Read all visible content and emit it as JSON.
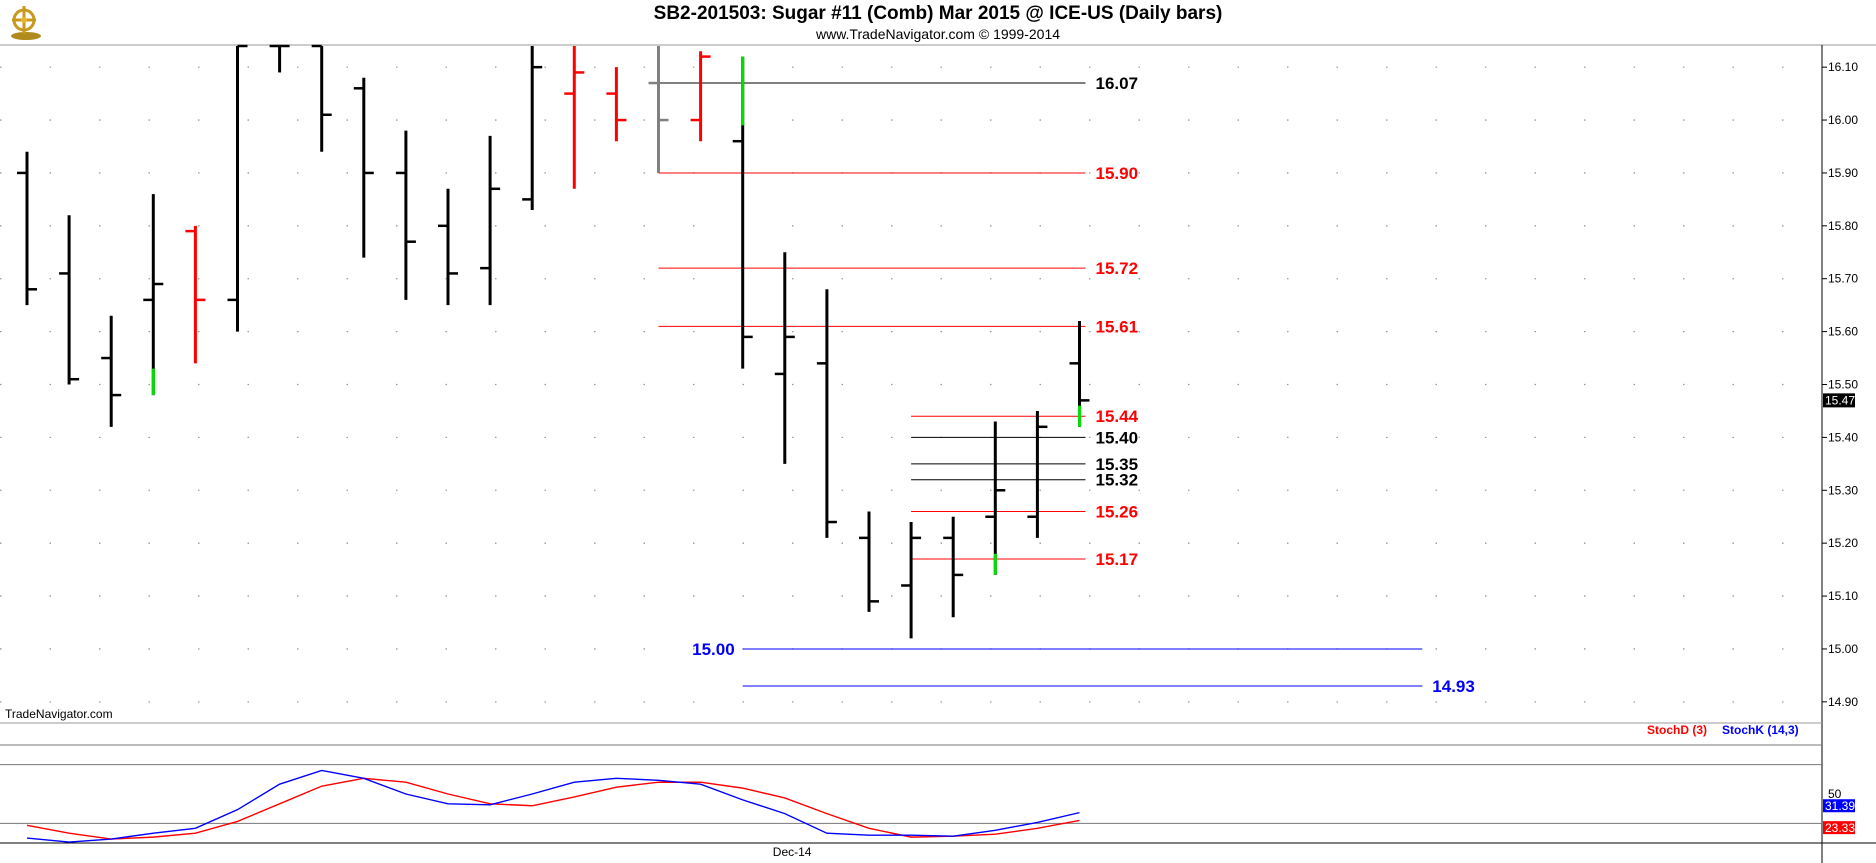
{
  "header": {
    "title": "SB2-201503:  Sugar #11 (Comb) Mar 2015 @ ICE-US  (Daily bars)",
    "subtitle": "www.TradeNavigator.com © 1999-2014"
  },
  "watermark": "TradeNavigator.com",
  "colors": {
    "up": "#ff0000",
    "down": "#000000",
    "flat": "#808080",
    "green": "#00e000",
    "level_red": "#ff0000",
    "level_black": "#000000",
    "level_blue": "#0000ff",
    "stochD": "#ff0000",
    "stochK": "#0000ff"
  },
  "indicator_legend": {
    "stochD": "StochD (3)",
    "stochK": "StochK (14,3)"
  },
  "chart_data": [
    {
      "type": "ohlc",
      "title": "SB2-201503:  Sugar #11 (Comb) Mar 2015 @ ICE-US  (Daily bars)",
      "ylim": [
        14.86,
        16.14
      ],
      "y_ticks": [
        "16.10",
        "16.00",
        "15.90",
        "15.80",
        "15.70",
        "15.60",
        "15.50",
        "15.40",
        "15.30",
        "15.20",
        "15.10",
        "15.00",
        "14.90"
      ],
      "x_tick_labels": [
        {
          "index": 18,
          "label": "Dec-14"
        }
      ],
      "last_price": "15.47",
      "bars": [
        {
          "o": 15.9,
          "h": 15.94,
          "l": 15.65,
          "c": 15.68,
          "color": "down"
        },
        {
          "o": 15.71,
          "h": 15.82,
          "l": 15.5,
          "c": 15.51,
          "color": "down"
        },
        {
          "o": 15.55,
          "h": 15.63,
          "l": 15.42,
          "c": 15.48,
          "color": "down"
        },
        {
          "o": 15.66,
          "h": 15.86,
          "l": 15.48,
          "c": 15.69,
          "color": "down",
          "green_tail": [
            15.48,
            15.53
          ]
        },
        {
          "o": 15.79,
          "h": 15.8,
          "l": 15.54,
          "c": 15.66,
          "color": "up"
        },
        {
          "o": 15.66,
          "h": 16.14,
          "l": 15.6,
          "c": 16.14,
          "color": "down"
        },
        {
          "o": 16.14,
          "h": 16.14,
          "l": 16.09,
          "c": 16.14,
          "color": "down"
        },
        {
          "o": 16.14,
          "h": 16.14,
          "l": 15.94,
          "c": 16.01,
          "color": "down"
        },
        {
          "o": 16.06,
          "h": 16.08,
          "l": 15.74,
          "c": 15.9,
          "color": "down"
        },
        {
          "o": 15.9,
          "h": 15.98,
          "l": 15.66,
          "c": 15.77,
          "color": "down"
        },
        {
          "o": 15.8,
          "h": 15.87,
          "l": 15.65,
          "c": 15.71,
          "color": "down"
        },
        {
          "o": 15.72,
          "h": 15.97,
          "l": 15.65,
          "c": 15.87,
          "color": "down"
        },
        {
          "o": 15.85,
          "h": 16.14,
          "l": 15.83,
          "c": 16.1,
          "color": "down"
        },
        {
          "o": 16.05,
          "h": 16.14,
          "l": 15.87,
          "c": 16.09,
          "color": "up"
        },
        {
          "o": 16.05,
          "h": 16.1,
          "l": 15.96,
          "c": 16.0,
          "color": "up"
        },
        {
          "o": 16.07,
          "h": 16.14,
          "l": 15.9,
          "c": 16.0,
          "color": "flat"
        },
        {
          "o": 16.0,
          "h": 16.13,
          "l": 15.96,
          "c": 16.12,
          "color": "up"
        },
        {
          "o": 15.96,
          "h": 16.12,
          "l": 15.53,
          "c": 15.59,
          "color": "down",
          "green_tail": [
            15.99,
            16.12
          ]
        },
        {
          "o": 15.52,
          "h": 15.75,
          "l": 15.35,
          "c": 15.59,
          "color": "down"
        },
        {
          "o": 15.54,
          "h": 15.68,
          "l": 15.21,
          "c": 15.24,
          "color": "down"
        },
        {
          "o": 15.21,
          "h": 15.26,
          "l": 15.07,
          "c": 15.09,
          "color": "down"
        },
        {
          "o": 15.12,
          "h": 15.24,
          "l": 15.02,
          "c": 15.21,
          "color": "down"
        },
        {
          "o": 15.21,
          "h": 15.25,
          "l": 15.06,
          "c": 15.14,
          "color": "down"
        },
        {
          "o": 15.25,
          "h": 15.43,
          "l": 15.14,
          "c": 15.3,
          "color": "down",
          "green_tail": [
            15.14,
            15.18
          ]
        },
        {
          "o": 15.25,
          "h": 15.45,
          "l": 15.21,
          "c": 15.42,
          "color": "down"
        },
        {
          "o": 15.54,
          "h": 15.62,
          "l": 15.42,
          "c": 15.47,
          "color": "down",
          "green_tail": [
            15.42,
            15.46
          ]
        }
      ],
      "levels": [
        {
          "label": "16.07",
          "value": 16.07,
          "color": "level_black",
          "from_index": 15,
          "to_index": 25
        },
        {
          "label": "15.90",
          "value": 15.9,
          "color": "level_red",
          "from_index": 15,
          "to_index": 25
        },
        {
          "label": "15.72",
          "value": 15.72,
          "color": "level_red",
          "from_index": 15,
          "to_index": 25
        },
        {
          "label": "15.61",
          "value": 15.61,
          "color": "level_red",
          "from_index": 15,
          "to_index": 25
        },
        {
          "label": "15.44",
          "value": 15.44,
          "color": "level_red",
          "from_index": 21,
          "to_index": 25
        },
        {
          "label": "15.40",
          "value": 15.4,
          "color": "level_black",
          "from_index": 21,
          "to_index": 25
        },
        {
          "label": "15.35",
          "value": 15.35,
          "color": "level_black",
          "from_index": 21,
          "to_index": 25
        },
        {
          "label": "15.32",
          "value": 15.32,
          "color": "level_black",
          "from_index": 21,
          "to_index": 25
        },
        {
          "label": "15.26",
          "value": 15.26,
          "color": "level_red",
          "from_index": 21,
          "to_index": 25
        },
        {
          "label": "15.17",
          "value": 15.17,
          "color": "level_red",
          "from_index": 21,
          "to_index": 25
        },
        {
          "label": "15.00",
          "value": 15.0,
          "color": "level_blue",
          "from_index": 17,
          "to_index": 33,
          "label_left": true
        },
        {
          "label": "14.93",
          "value": 14.93,
          "color": "level_blue",
          "from_index": 17,
          "to_index": 33
        }
      ]
    },
    {
      "type": "line",
      "name": "Stochastic",
      "ylim": [
        0,
        100
      ],
      "y_ticks": [
        "50"
      ],
      "ref_lines": [
        80,
        20
      ],
      "last_values": {
        "stochK": "31.39",
        "stochD": "23.33"
      },
      "series": [
        {
          "name": "StochD (3)",
          "key": "stochD",
          "values": [
            18,
            10,
            4,
            6,
            10,
            22,
            40,
            58,
            66,
            62,
            50,
            40,
            38,
            47,
            57,
            62,
            62,
            56,
            46,
            30,
            15,
            6,
            7,
            9,
            15,
            23
          ]
        },
        {
          "name": "StochK (14,3)",
          "key": "stochK",
          "values": [
            5,
            1,
            4,
            10,
            15,
            34,
            60,
            74,
            66,
            50,
            40,
            39,
            50,
            62,
            66,
            64,
            60,
            44,
            30,
            10,
            8,
            8,
            7,
            13,
            21,
            31
          ]
        }
      ]
    }
  ]
}
